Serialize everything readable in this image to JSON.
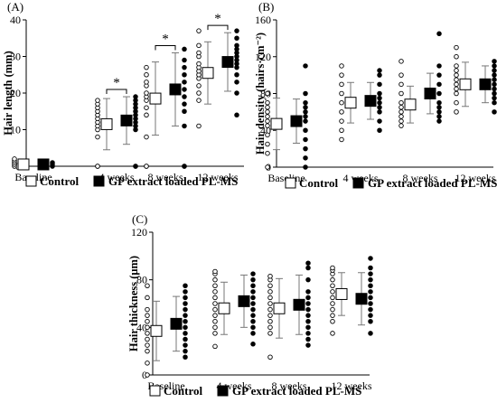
{
  "chart_data": [
    {
      "type": "scatter",
      "panel_label": "(A)",
      "ylabel": "Hair length (mm)",
      "ylim": [
        0,
        40
      ],
      "yticks": [
        "0",
        "10",
        "20",
        "30",
        "40"
      ],
      "categories": [
        "Baseline",
        "4 weeks",
        "8 weeks",
        "12 weeks"
      ],
      "significance": [
        "",
        "*",
        "*",
        "*"
      ],
      "series": [
        {
          "name": "Control",
          "style": "open",
          "means": [
            0.5,
            11.5,
            18.5,
            25.5
          ],
          "errors": [
            0.8,
            7,
            10,
            8.5
          ],
          "points": [
            [
              0,
              0.5,
              1,
              1.5,
              2
            ],
            [
              0,
              0,
              8,
              10,
              11,
              12,
              13,
              14,
              15,
              16,
              17,
              18
            ],
            [
              0,
              0,
              8,
              14,
              16,
              18,
              19,
              20,
              22,
              23,
              25,
              27
            ],
            [
              11,
              18,
              20,
              22,
              24,
              25,
              26,
              27,
              28,
              30,
              31,
              33,
              37
            ]
          ]
        },
        {
          "name": "GP extract loaded PL-MS",
          "style": "filled",
          "means": [
            0.5,
            12.5,
            21,
            28.5
          ],
          "errors": [
            0.8,
            6.5,
            10,
            8
          ],
          "points": [
            [
              0,
              0.5,
              1
            ],
            [
              0,
              0,
              10,
              11,
              12,
              13,
              14,
              15,
              16,
              17,
              18,
              19
            ],
            [
              0,
              0,
              11,
              15,
              17,
              19,
              21,
              23,
              25,
              27,
              29,
              32
            ],
            [
              14,
              20,
              23,
              25,
              27,
              28,
              29,
              30,
              31,
              32,
              33,
              35,
              37
            ]
          ]
        }
      ]
    },
    {
      "type": "scatter",
      "panel_label": "(B)",
      "ylabel": "Hair density (hairs·cm⁻²)",
      "ylim": [
        0,
        160
      ],
      "yticks": [
        "0",
        "40",
        "80",
        "120",
        "160"
      ],
      "categories": [
        "Baseline",
        "4 weeks",
        "8 weeks",
        "12 weeks"
      ],
      "significance": [
        "",
        "",
        "",
        ""
      ],
      "series": [
        {
          "name": "Control",
          "style": "open",
          "means": [
            47,
            70,
            68,
            90
          ],
          "errors": [
            28,
            22,
            20,
            24
          ],
          "points": [
            [
              0,
              15,
              25,
              35,
              45,
              50,
              55,
              60,
              65,
              70,
              80
            ],
            [
              30,
              40,
              50,
              60,
              70,
              80,
              90,
              100,
              110
            ],
            [
              45,
              50,
              55,
              60,
              65,
              70,
              80,
              90,
              100,
              115
            ],
            [
              60,
              70,
              80,
              85,
              90,
              95,
              100,
              105,
              110,
              120,
              130
            ]
          ]
        },
        {
          "name": "GP extract loaded PL-MS",
          "style": "filled",
          "means": [
            50,
            72,
            80,
            90
          ],
          "errors": [
            24,
            20,
            22,
            20
          ],
          "points": [
            [
              0,
              10,
              20,
              30,
              40,
              50,
              55,
              60,
              65,
              70,
              80,
              110
            ],
            [
              40,
              50,
              60,
              65,
              70,
              75,
              80,
              90,
              100,
              105
            ],
            [
              50,
              55,
              60,
              65,
              70,
              80,
              90,
              100,
              110,
              145
            ],
            [
              60,
              70,
              75,
              80,
              85,
              90,
              95,
              100,
              105,
              110,
              115
            ]
          ]
        }
      ]
    },
    {
      "type": "scatter",
      "panel_label": "(C)",
      "ylabel": "Hair thickness (μm)",
      "ylim": [
        0,
        120
      ],
      "yticks": [
        "0",
        "40",
        "80",
        "120"
      ],
      "categories": [
        "Baseline",
        "4 weeks",
        "8 weeks",
        "12 weeks"
      ],
      "significance": [
        "",
        "",
        "",
        ""
      ],
      "series": [
        {
          "name": "Control",
          "style": "open",
          "means": [
            37,
            56,
            56,
            68
          ],
          "errors": [
            25,
            22,
            25,
            18
          ],
          "points": [
            [
              0,
              10,
              20,
              25,
              30,
              35,
              40,
              45,
              50,
              55,
              65,
              75
            ],
            [
              24,
              35,
              40,
              45,
              50,
              55,
              60,
              65,
              70,
              75,
              80,
              85,
              87
            ],
            [
              15,
              35,
              40,
              45,
              50,
              55,
              60,
              65,
              70,
              75,
              80,
              83
            ],
            [
              35,
              45,
              50,
              55,
              60,
              65,
              70,
              75,
              80,
              85,
              88,
              90
            ]
          ]
        },
        {
          "name": "GP extract loaded PL-MS",
          "style": "filled",
          "means": [
            43,
            62,
            59,
            64
          ],
          "errors": [
            23,
            22,
            25,
            22
          ],
          "points": [
            [
              15,
              20,
              25,
              30,
              35,
              40,
              45,
              50,
              55,
              60,
              65,
              70,
              75
            ],
            [
              26,
              35,
              40,
              45,
              50,
              55,
              60,
              65,
              70,
              75,
              80,
              85
            ],
            [
              25,
              30,
              35,
              40,
              45,
              50,
              55,
              60,
              65,
              70,
              80,
              90,
              94
            ],
            [
              35,
              45,
              50,
              55,
              60,
              65,
              70,
              75,
              80,
              85,
              90,
              98
            ]
          ]
        }
      ]
    }
  ],
  "legend": {
    "control_label": "Control",
    "treatment_label": "GP extract loaded PL-MS"
  }
}
